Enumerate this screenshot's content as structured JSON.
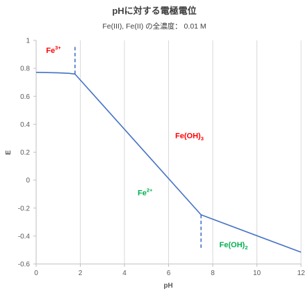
{
  "chart_data": {
    "type": "line",
    "title": "pHに対する電極電位",
    "subtitle": "Fe(III), Fe(II) の全濃度： 0.01 M",
    "xlabel": "pH",
    "ylabel": "E",
    "xlim": [
      0,
      12
    ],
    "ylim": [
      -0.6,
      1.0
    ],
    "xticks": [
      0,
      2,
      4,
      6,
      8,
      10,
      12
    ],
    "yticks": [
      -0.6,
      -0.4,
      -0.2,
      0,
      0.2,
      0.4,
      0.6,
      0.8,
      1.0
    ],
    "ytick_labels": [
      "-0.6",
      "-0.4",
      "-0.2",
      "0",
      "0.2",
      "0.4",
      "0.6",
      "0.8",
      "1"
    ],
    "grid": "vertical",
    "line_color": "#4472c4",
    "series": [
      {
        "points": [
          [
            0,
            0.771
          ],
          [
            0.5,
            0.77
          ],
          [
            1.0,
            0.768
          ],
          [
            1.5,
            0.764
          ],
          [
            1.76,
            0.759
          ],
          [
            7.47,
            -0.248
          ],
          [
            12,
            -0.516
          ]
        ]
      }
    ],
    "boundaries": [
      {
        "x": 1.76,
        "y_from": 0.759,
        "y_to": 0.97
      },
      {
        "x": 7.47,
        "y_from": -0.248,
        "y_to": -0.49
      }
    ],
    "regions": [
      {
        "base": "Fe",
        "sup": "3+",
        "sub": "",
        "suffix": "",
        "x": 0.45,
        "y": 0.91,
        "color": "#ff0000"
      },
      {
        "base": "Fe(OH)",
        "sup": "",
        "sub": "3",
        "suffix": "",
        "x": 6.3,
        "y": 0.3,
        "color": "#ff0000"
      },
      {
        "base": "Fe",
        "sup": "2+",
        "sub": "",
        "suffix": "",
        "x": 4.6,
        "y": -0.11,
        "color": "#00b050"
      },
      {
        "base": "Fe(OH)",
        "sup": "",
        "sub": "2",
        "suffix": "",
        "x": 8.3,
        "y": -0.48,
        "color": "#00b050"
      }
    ]
  }
}
